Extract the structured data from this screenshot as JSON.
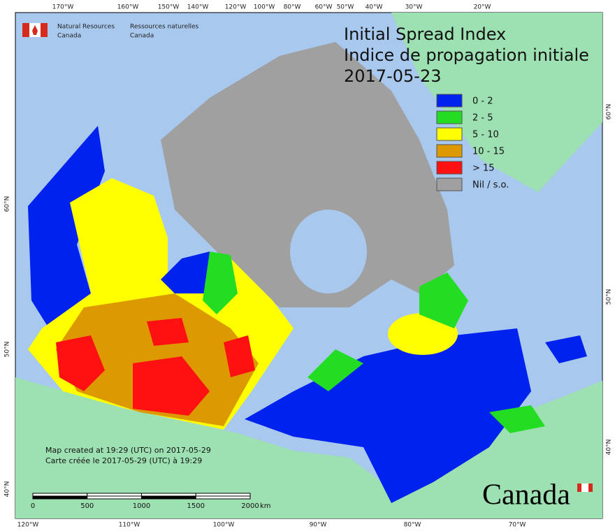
{
  "header": {
    "dept_en": [
      "Natural Resources",
      "Canada"
    ],
    "dept_fr": [
      "Ressources naturelles",
      "Canada"
    ]
  },
  "title": {
    "line1": "Initial Spread Index",
    "line2": "Indice de propagation initiale",
    "date": "2017-05-23"
  },
  "legend": [
    {
      "label": "0 - 2",
      "color": "#0022ee"
    },
    {
      "label": "2 - 5",
      "color": "#22dd22"
    },
    {
      "label": "5 - 10",
      "color": "#ffff00"
    },
    {
      "label": "10 - 15",
      "color": "#dd9900"
    },
    {
      "label": "> 15",
      "color": "#ff1111"
    },
    {
      "label": "Nil / s.o.",
      "color": "#a0a0a0"
    }
  ],
  "top_lon_labels": [
    "170°W",
    "160°W",
    "150°W",
    "140°W",
    "120°W",
    "100°W",
    "80°W",
    "60°W",
    "50°W",
    "40°W",
    "30°W",
    "20°W"
  ],
  "bottom_lon_labels": [
    "120°W",
    "110°W",
    "100°W",
    "90°W",
    "80°W",
    "70°W"
  ],
  "left_lat_labels": [
    "60°N",
    "50°N",
    "40°N"
  ],
  "right_lat_labels": [
    "60°N",
    "50°N",
    "40°N"
  ],
  "credits": [
    "Map created at 19:29 (UTC) on 2017-05-29",
    "Carte créée le 2017-05-29 (UTC) à 19:29"
  ],
  "scale_bar": {
    "ticks": [
      0,
      500,
      1000,
      1500,
      2000
    ],
    "unit": "km"
  },
  "wordmark": "Canada"
}
